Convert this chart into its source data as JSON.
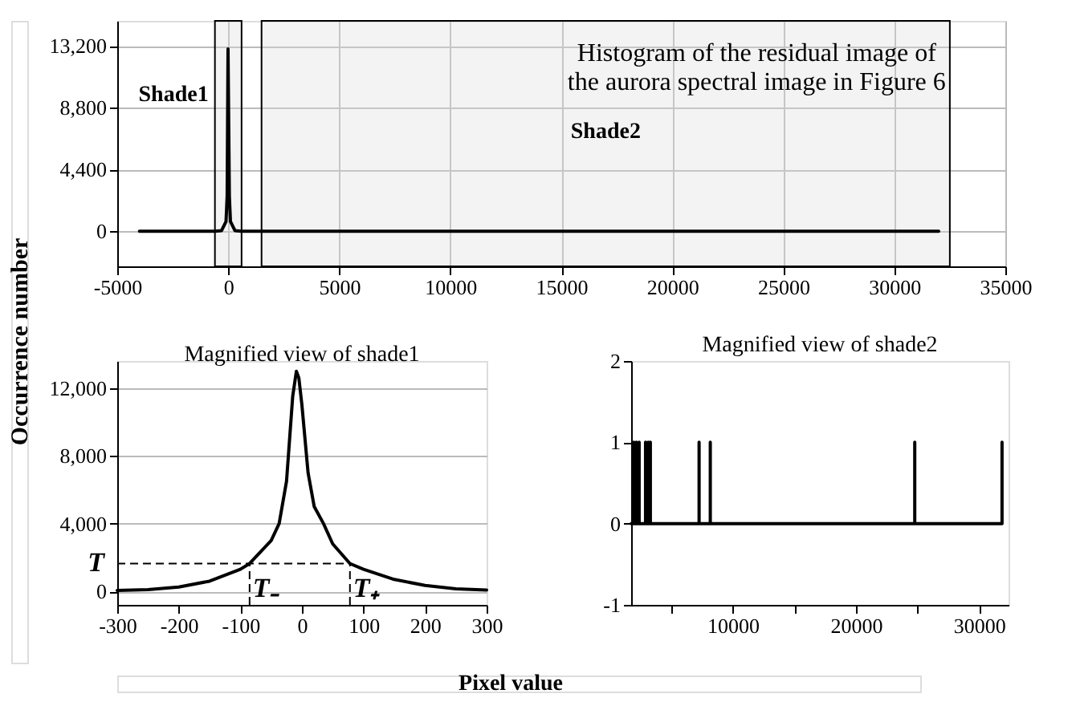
{
  "chart_data": [
    {
      "type": "line",
      "title": "Histogram of the residual image of\nthe aurora spectral image in Figure 6",
      "xlabel": "Pixel value",
      "ylabel": "Occurrence number",
      "x": [
        -4000,
        -600,
        -300,
        -100,
        -50,
        -10,
        50,
        100,
        300,
        600,
        32000
      ],
      "series": [
        {
          "color": "#000000",
          "values": [
            0,
            0,
            50,
            700,
            2500,
            13000,
            2500,
            700,
            50,
            0,
            0
          ]
        }
      ],
      "xlim": [
        -5000,
        35000
      ],
      "xticks": [
        -5000,
        0,
        5000,
        10000,
        15000,
        20000,
        25000,
        30000,
        35000
      ],
      "ylim": [
        -2500,
        15000
      ],
      "yticks": [
        {
          "value": 0,
          "label": "0"
        },
        {
          "value": 4400,
          "label": "4,400"
        },
        {
          "value": 8800,
          "label": "8,800"
        },
        {
          "value": 13200,
          "label": "13,200"
        }
      ],
      "bands": [
        {
          "axis": "x",
          "from": -600,
          "to": 600,
          "label": "Shade1"
        },
        {
          "axis": "x",
          "from": 1500,
          "to": 32500,
          "label": "Shade2"
        }
      ],
      "grid": true,
      "marker": "none",
      "line_style": "solid"
    },
    {
      "type": "line",
      "title": "Magnified view of shade1",
      "x": [
        -300,
        -250,
        -200,
        -150,
        -100,
        -85,
        -50,
        -37,
        -25,
        -15,
        -9,
        -5,
        0,
        10,
        20,
        35,
        50,
        78,
        100,
        150,
        200,
        250,
        300
      ],
      "series": [
        {
          "color": "#000000",
          "values": [
            50,
            100,
            250,
            600,
            1300,
            1640,
            3000,
            4000,
            6500,
            11500,
            13000,
            12600,
            11000,
            7000,
            5000,
            4000,
            2800,
            1640,
            1300,
            700,
            350,
            150,
            80
          ]
        }
      ],
      "xlim": [
        -300,
        300
      ],
      "xticks": [
        -300,
        -200,
        -100,
        0,
        100,
        200,
        300
      ],
      "ylim": [
        -800,
        13600
      ],
      "yticks": [
        {
          "value": 0,
          "label": "0"
        },
        {
          "value": 4000,
          "label": "4,000"
        },
        {
          "value": 8000,
          "label": "8,000"
        },
        {
          "value": 12000,
          "label": "12,000"
        }
      ],
      "ref_lines": [
        {
          "axis": "y",
          "value": 1640,
          "label": "T",
          "line_style": "dashed"
        },
        {
          "axis": "x",
          "value": -85,
          "label": "T₋",
          "line_style": "dashed"
        },
        {
          "axis": "x",
          "value": 78,
          "label": "T₊",
          "line_style": "dashed"
        }
      ],
      "grid": "y",
      "marker": "none",
      "line_style": "solid"
    },
    {
      "type": "line",
      "title": "Magnified view of shade2",
      "x": [
        1740,
        1960,
        1960,
        1960,
        2170,
        2170,
        2170,
        2390,
        2390,
        2390,
        2910,
        2910,
        2910,
        3130,
        3130,
        3130,
        3300,
        3300,
        3300,
        7260,
        7260,
        7260,
        8170,
        8170,
        8170,
        24780,
        24780,
        24780,
        31870,
        31870
      ],
      "series": [
        {
          "color": "#000000",
          "values": [
            0,
            0,
            1,
            0,
            0,
            1,
            0,
            0,
            1,
            0,
            0,
            1,
            0,
            0,
            1,
            0,
            0,
            1,
            0,
            0,
            1,
            0,
            0,
            1,
            0,
            0,
            1,
            0,
            0,
            1
          ]
        }
      ],
      "xlim": [
        1740,
        32400
      ],
      "xticks": [
        {
          "value": 5000,
          "label": null
        },
        10000,
        {
          "value": 15000,
          "label": null
        },
        20000,
        {
          "value": 25000,
          "label": null
        },
        30000
      ],
      "ylim": [
        -1,
        2
      ],
      "yticks": [
        -1,
        0,
        1,
        2
      ],
      "grid": false,
      "marker": "none",
      "line_style": "solid"
    }
  ]
}
